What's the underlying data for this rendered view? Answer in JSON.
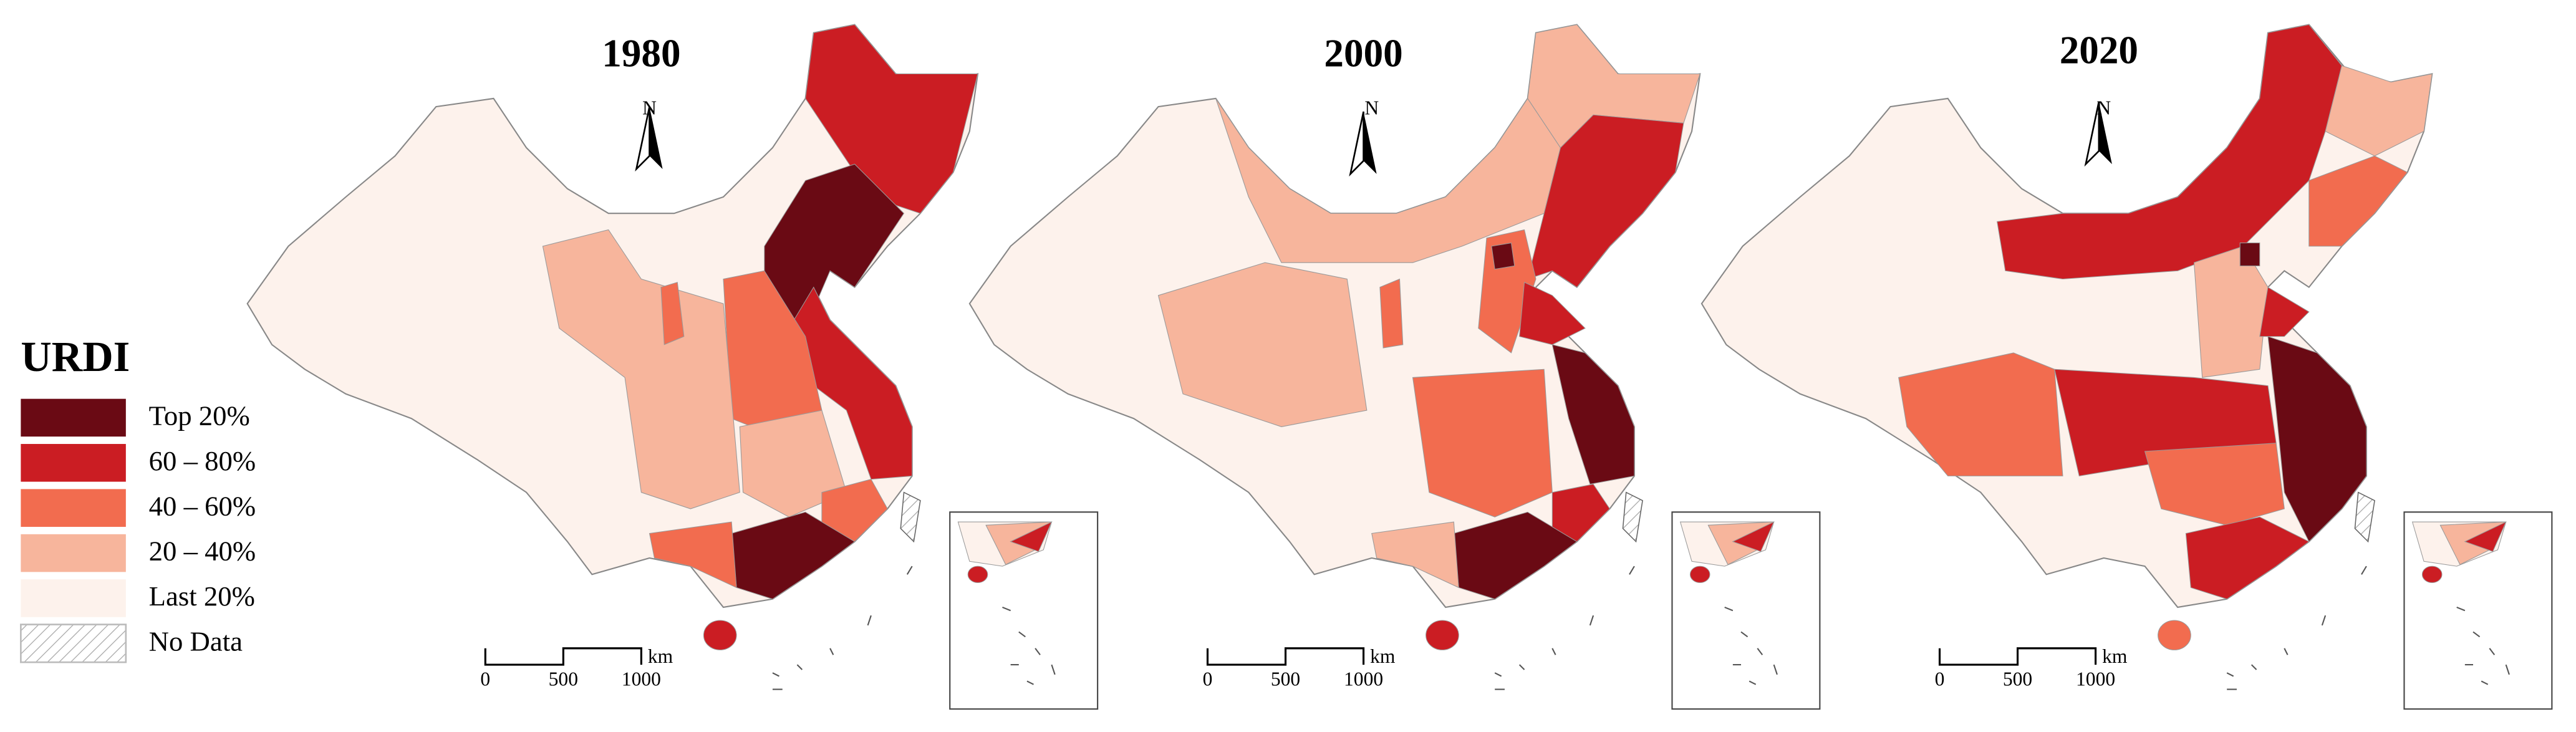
{
  "maps": [
    {
      "title": "1980"
    },
    {
      "title": "2000"
    },
    {
      "title": "2020"
    }
  ],
  "north": "N",
  "scale": {
    "ticks": [
      0,
      500,
      1000
    ],
    "unit": "km"
  },
  "legend": {
    "title": "URDI",
    "items": [
      {
        "label": "Top 20%",
        "color": "#6a0a14"
      },
      {
        "label": "60 – 80%",
        "color": "#cb1d23"
      },
      {
        "label": "40 – 60%",
        "color": "#f26c4f"
      },
      {
        "label": "20 – 40%",
        "color": "#f7b59c"
      },
      {
        "label": "Last 20%",
        "color": "#fdf2ec"
      },
      {
        "label": "No Data",
        "color": "#ffffff"
      }
    ]
  }
}
